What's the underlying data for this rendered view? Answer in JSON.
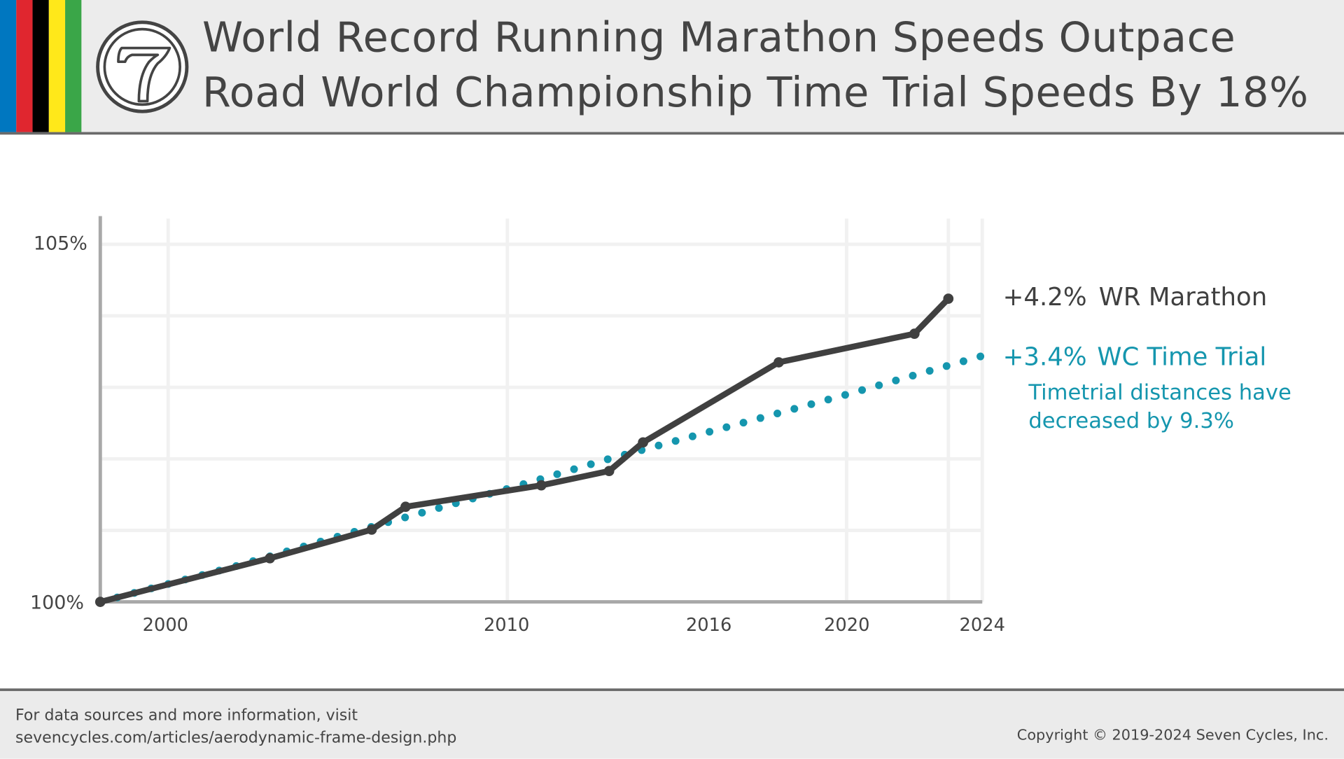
{
  "header": {
    "title_line1": "World Record Running Marathon Speeds Outpace",
    "title_line2": "Road World Championship Time Trial Speeds By 18%",
    "logo": "seven-cycles-7-logo",
    "stripe_colors": [
      "#0077c0",
      "#e0262f",
      "#000000",
      "#ffe81a",
      "#3aa648"
    ]
  },
  "chart_data": {
    "type": "line",
    "title": "World Record Running Marathon Speeds Outpace Road World Championship Time Trial Speeds By 18%",
    "xlim": [
      1998,
      2024
    ],
    "ylim": [
      100,
      105
    ],
    "x_ticks": [
      "2000",
      "2010",
      "2016",
      "2020",
      "2024"
    ],
    "x_tick_values": [
      2000,
      2010,
      2016,
      2020,
      2024
    ],
    "y_ticks": [
      "100%",
      "105%"
    ],
    "y_tick_values": [
      100,
      105
    ],
    "grid": true,
    "series": [
      {
        "name": "WR Marathon",
        "label_value": "+4.2%",
        "color": "#404040",
        "style": "solid-with-markers",
        "x": [
          1998,
          2003,
          2006,
          2007,
          2011,
          2013,
          2014,
          2018,
          2022,
          2023
        ],
        "y": [
          100,
          100.61,
          101.01,
          101.33,
          101.63,
          101.83,
          102.23,
          103.35,
          103.75,
          104.24
        ]
      },
      {
        "name": "WC Time Trial",
        "label_value": "+3.4%",
        "color": "#1596ae",
        "style": "dotted",
        "x": [
          1998,
          2002,
          2006,
          2010,
          2013,
          2018,
          2020,
          2024
        ],
        "y": [
          100,
          100.5,
          101.05,
          101.58,
          102.0,
          102.64,
          102.9,
          103.44
        ]
      }
    ],
    "annotation": [
      "Timetrial distances have",
      "decreased by 9.3%"
    ]
  },
  "footer": {
    "line1": "For data sources and more information, visit",
    "line2": "sevencycles.com/articles/aerodynamic-frame-design.php",
    "copyright": "Copyright © 2019-2024 Seven Cycles, Inc."
  }
}
